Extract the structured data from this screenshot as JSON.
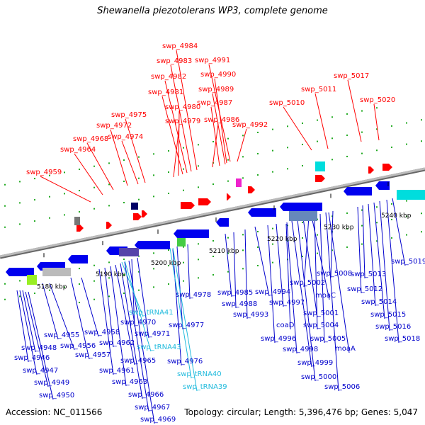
{
  "header": {
    "title": "Shewanella piezotolerans WP3, complete genome"
  },
  "footer": {
    "accession": "Accession: NC_011566",
    "summary": "Topology: circular; Length: 5,396,476 bp; Genes: 5,047"
  },
  "colors": {
    "plus_strand_label": "#ff0000",
    "minus_strand_label": "#0000cc",
    "trna_label": "#22bbdd",
    "plus_gene": "#ff0000",
    "minus_gene": "#0000ee",
    "backbone": "#999999",
    "tick_dots": "#22aa22"
  },
  "map": {
    "ticks": [
      "5180 kbp",
      "5190 kbp",
      "5200 kbp",
      "5210 kbp",
      "5220 kbp",
      "5230 kbp",
      "5240 kbp"
    ],
    "upper_labels": [
      "swp_4959",
      "swp_4964",
      "swp_4968",
      "swp_4972",
      "swp_4974",
      "swp_4975",
      "swp_4979",
      "swp_4980",
      "swp_4981",
      "swp_4982",
      "swp_4983",
      "swp_4984",
      "swp_4986",
      "swp_4987",
      "swp_4989",
      "swp_4990",
      "swp_4991",
      "swp_4992",
      "swp_5010",
      "swp_5011",
      "swp_5017",
      "swp_5020"
    ],
    "lower_labels": [
      "swp_4946",
      "swp_4947",
      "swp_4948",
      "swp_4949",
      "swp_4950",
      "swp_4955",
      "swp_4956",
      "swp_4957",
      "swp_4958",
      "swp_4961",
      "swp_4962",
      "swp_4963",
      "swp_4965",
      "swp_4966",
      "swp_4967",
      "swp_4969",
      "swp_4970",
      "swp_4971",
      "swp_4976",
      "swp_4977",
      "swp_4978",
      "swp_4985",
      "swp_4988",
      "swp_4993",
      "swp_4994",
      "swp_4996",
      "swp_4997",
      "swp_4998",
      "swp_4999",
      "swp_5000",
      "swp_5001",
      "swp_5002",
      "swp_5004",
      "swp_5005",
      "swp_5006",
      "swp_5008",
      "swp_5012",
      "swp_5013",
      "swp_5014",
      "swp_5015",
      "swp_5016",
      "swp_5018",
      "swp_5019",
      "coaD",
      "moaC",
      "moaA"
    ],
    "trna_labels": [
      "swp_tRNA41",
      "swp_tRNA43",
      "swp_tRNA40",
      "swp_tRNA39"
    ]
  }
}
